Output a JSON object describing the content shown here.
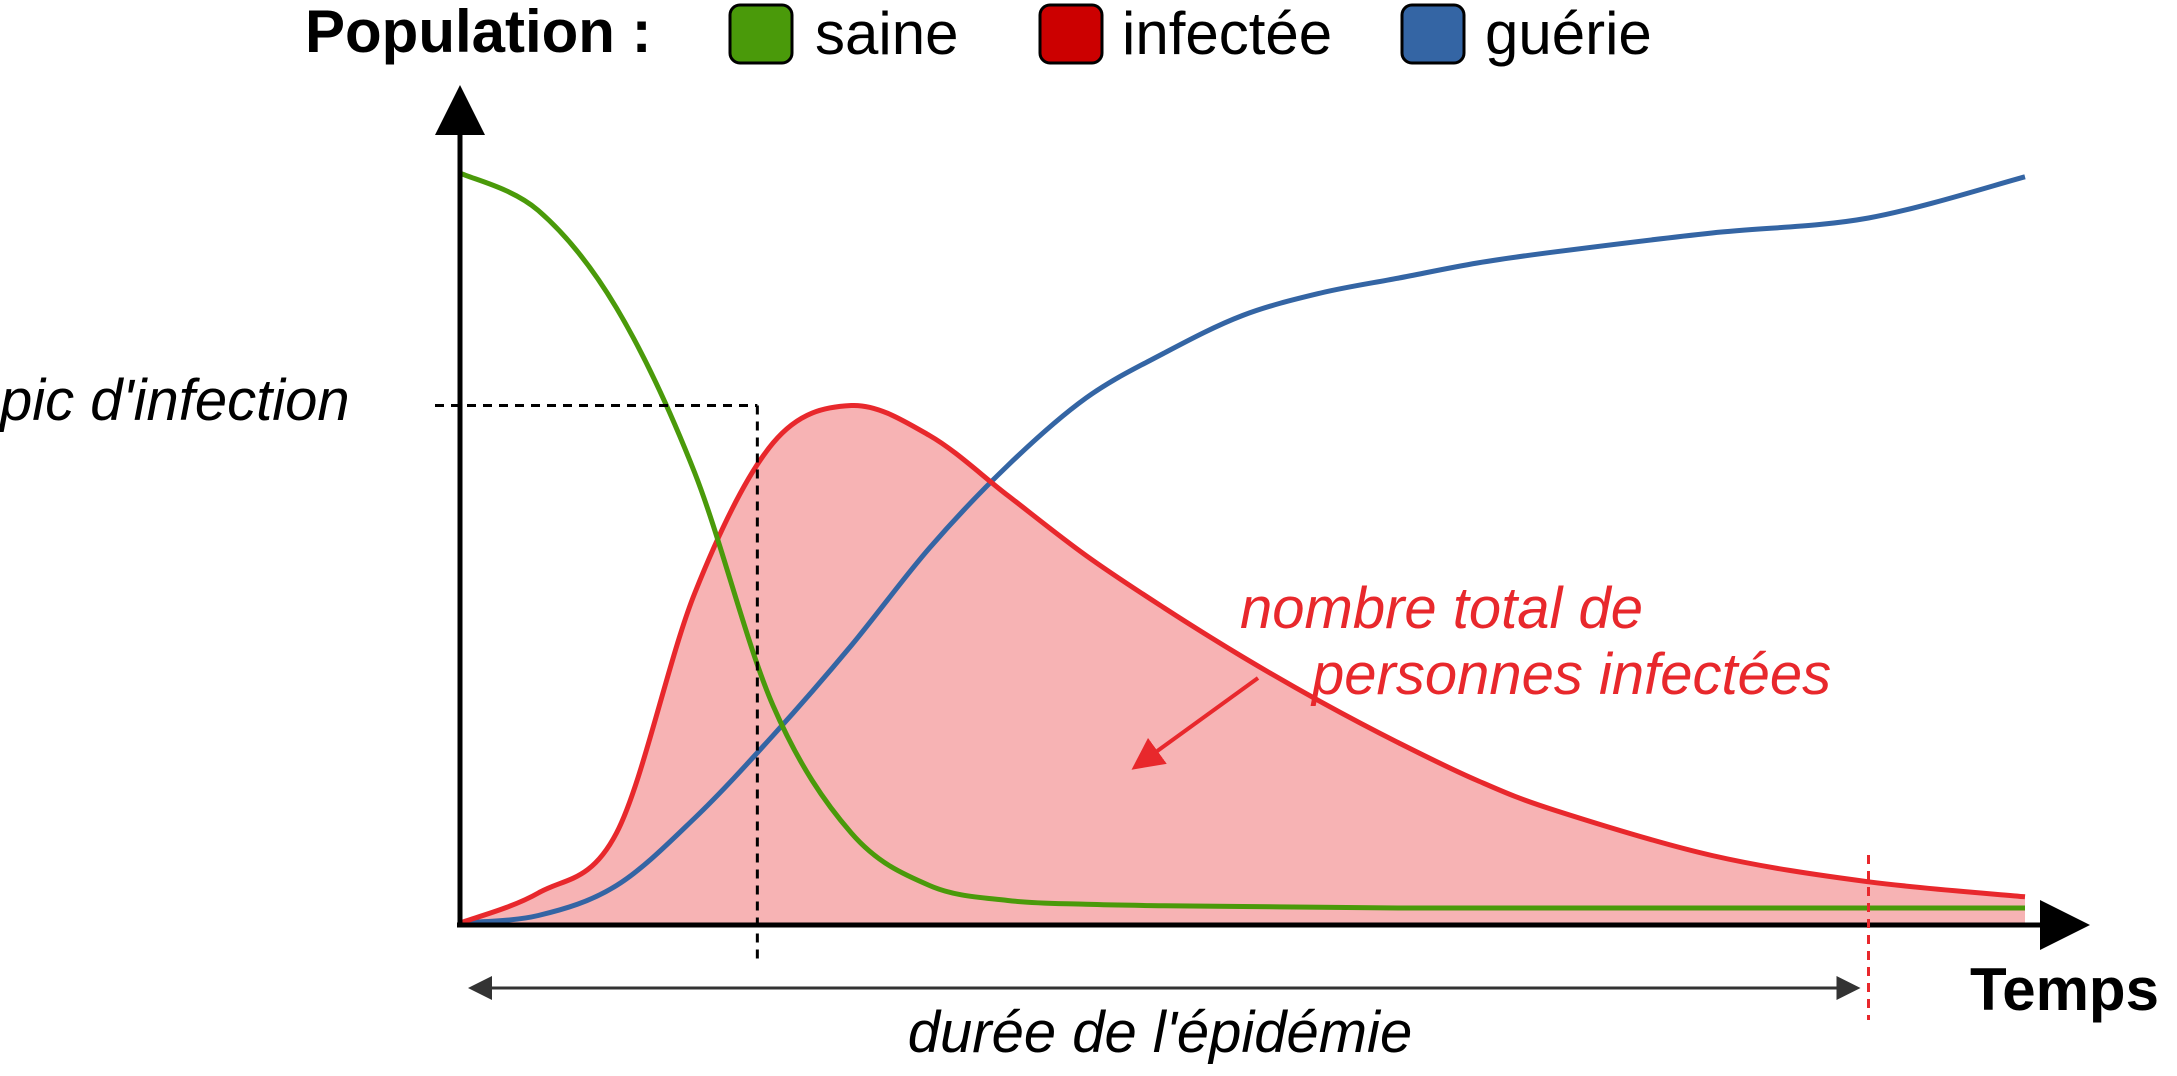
{
  "chart_data": {
    "type": "line",
    "title": "",
    "legend": {
      "title": "Population :",
      "placement": "top",
      "entries": [
        {
          "label": "saine",
          "color": "#4a9a0a"
        },
        {
          "label": "infectée",
          "color": "#cc0000"
        },
        {
          "label": "guérie",
          "color": "#3465a4"
        }
      ]
    },
    "xlabel": "Temps",
    "ylabel": "",
    "xlim": [
      0,
      100
    ],
    "ylim": [
      0,
      100
    ],
    "grid": false,
    "x": [
      0,
      5,
      10,
      15,
      20,
      25,
      30,
      35,
      40,
      45,
      50,
      55,
      60,
      65,
      70,
      80,
      90,
      100
    ],
    "series": [
      {
        "name": "saine",
        "color": "#4a9a0a",
        "values": [
          100,
          95,
          82,
          60,
          29,
          12,
          5,
          3,
          2.5,
          2.3,
          2.2,
          2.1,
          2.0,
          2.0,
          2.0,
          2.0,
          2.0,
          2.0
        ]
      },
      {
        "name": "infectée",
        "color": "#e8282c",
        "fill": "#f7b3b4",
        "values": [
          0,
          4,
          12,
          44,
          64,
          69,
          65,
          57,
          49,
          42,
          35.5,
          29.5,
          24,
          19,
          15,
          9,
          5.5,
          3.5
        ]
      },
      {
        "name": "guérie",
        "color": "#3465a4",
        "values": [
          0,
          1,
          5,
          14,
          25,
          37,
          50,
          61,
          70,
          76,
          81,
          84,
          86,
          88,
          89.5,
          92,
          94,
          99.5
        ]
      }
    ],
    "annotations": {
      "peak": {
        "label": "pic d'infection",
        "x": 19,
        "y": 69
      },
      "total_infected": {
        "line1": "nombre total de",
        "line2": "personnes infectées",
        "color": "#e8282c"
      },
      "duration": {
        "label": "durée de l'épidémie",
        "x_start": 0,
        "x_end": 90
      }
    }
  }
}
